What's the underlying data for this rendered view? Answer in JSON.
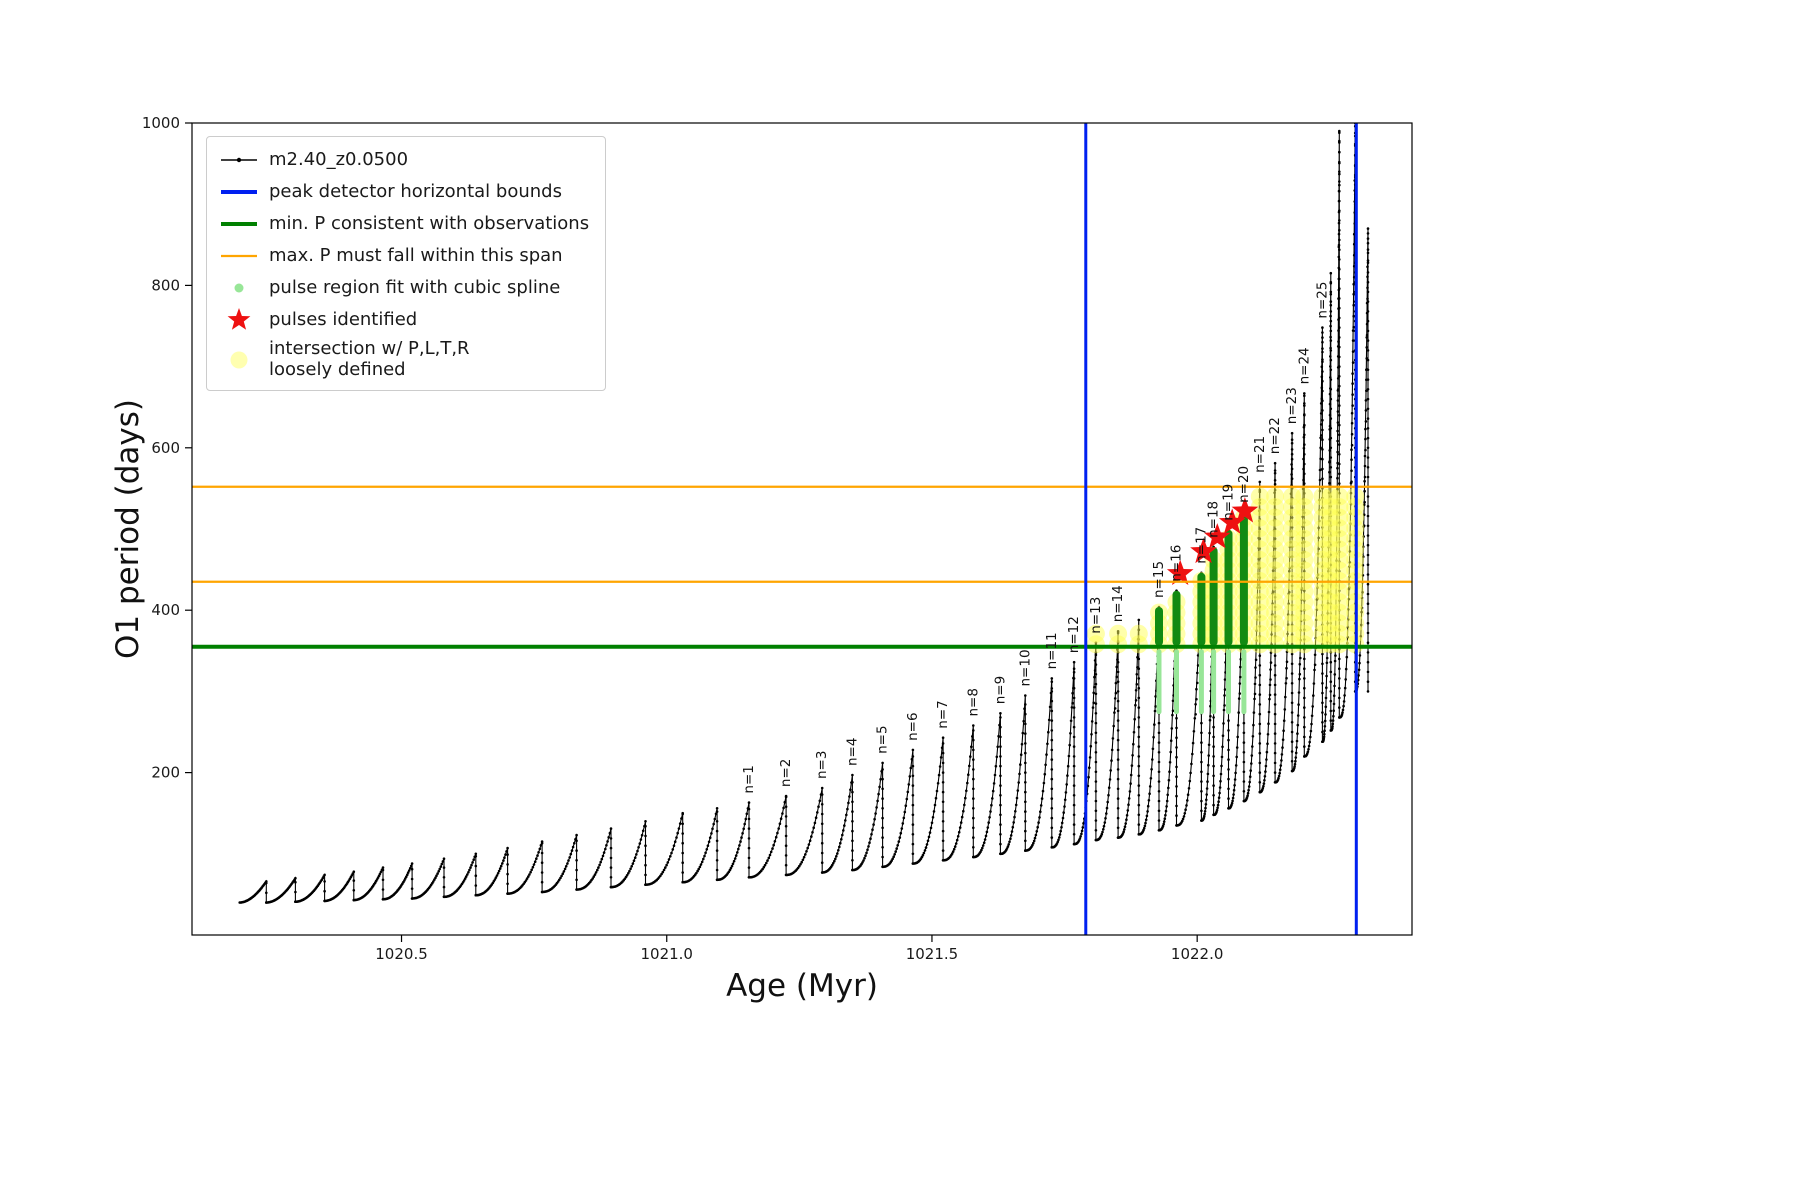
{
  "chart_data": {
    "type": "line",
    "title": "",
    "xlabel": "Age (Myr)",
    "ylabel": "O1 period (days)",
    "xlim": [
      1020.105,
      1022.405
    ],
    "ylim": [
      0,
      1000
    ],
    "xticks": [
      1020.5,
      1021.0,
      1021.5,
      1022.0
    ],
    "yticks": [
      200,
      400,
      600,
      800,
      1000
    ],
    "series_name": "m2.40_z0.0500",
    "peak_detector_bounds_x": [
      1021.79,
      1022.3
    ],
    "min_P_consistent_y": 355,
    "max_P_span_y": [
      435,
      552
    ],
    "pulses": [
      {
        "age": 1020.245,
        "peak": 66,
        "trough": 40
      },
      {
        "age": 1020.3,
        "peak": 70,
        "trough": 40
      },
      {
        "age": 1020.355,
        "peak": 74,
        "trough": 41
      },
      {
        "age": 1020.41,
        "peak": 78,
        "trough": 42
      },
      {
        "age": 1020.465,
        "peak": 83,
        "trough": 43
      },
      {
        "age": 1020.52,
        "peak": 88,
        "trough": 44
      },
      {
        "age": 1020.58,
        "peak": 94,
        "trough": 45
      },
      {
        "age": 1020.64,
        "peak": 100,
        "trough": 47
      },
      {
        "age": 1020.7,
        "peak": 107,
        "trough": 49
      },
      {
        "age": 1020.765,
        "peak": 115,
        "trough": 51
      },
      {
        "age": 1020.83,
        "peak": 123,
        "trough": 53
      },
      {
        "age": 1020.895,
        "peak": 131,
        "trough": 56
      },
      {
        "age": 1020.96,
        "peak": 140,
        "trough": 59
      },
      {
        "age": 1021.03,
        "peak": 150,
        "trough": 62
      },
      {
        "age": 1021.095,
        "peak": 156,
        "trough": 65
      },
      {
        "age": 1021.155,
        "peak": 163,
        "trough": 68,
        "label": "n=1"
      },
      {
        "age": 1021.225,
        "peak": 171,
        "trough": 71,
        "label": "n=2"
      },
      {
        "age": 1021.293,
        "peak": 181,
        "trough": 74,
        "label": "n=3"
      },
      {
        "age": 1021.35,
        "peak": 197,
        "trough": 77,
        "label": "n=4"
      },
      {
        "age": 1021.407,
        "peak": 212,
        "trough": 80,
        "label": "n=5"
      },
      {
        "age": 1021.464,
        "peak": 228,
        "trough": 84,
        "label": "n=6"
      },
      {
        "age": 1021.521,
        "peak": 243,
        "trough": 88,
        "label": "n=7"
      },
      {
        "age": 1021.578,
        "peak": 258,
        "trough": 92,
        "label": "n=8"
      },
      {
        "age": 1021.629,
        "peak": 273,
        "trough": 96,
        "label": "n=9"
      },
      {
        "age": 1021.676,
        "peak": 295,
        "trough": 100,
        "label": "n=10"
      },
      {
        "age": 1021.726,
        "peak": 316,
        "trough": 104,
        "label": "n=11"
      },
      {
        "age": 1021.768,
        "peak": 336,
        "trough": 108,
        "label": "n=12"
      },
      {
        "age": 1021.809,
        "peak": 360,
        "trough": 112,
        "label": "n=13"
      },
      {
        "age": 1021.851,
        "peak": 374,
        "trough": 117,
        "label": "n=14"
      },
      {
        "age": 1021.89,
        "peak": 388,
        "trough": 120
      },
      {
        "age": 1021.928,
        "peak": 404,
        "trough": 124,
        "label": "n=15"
      },
      {
        "age": 1021.961,
        "peak": 424,
        "trough": 129,
        "label": "n=16"
      },
      {
        "age": 1022.008,
        "peak": 446,
        "trough": 135,
        "label": "n=17"
      },
      {
        "age": 1022.031,
        "peak": 478,
        "trough": 141,
        "label": "n=18"
      },
      {
        "age": 1022.059,
        "peak": 499,
        "trough": 148,
        "label": "n=19"
      },
      {
        "age": 1022.088,
        "peak": 521,
        "trough": 156,
        "label": "n=20"
      },
      {
        "age": 1022.118,
        "peak": 558,
        "trough": 165,
        "label": "n=21"
      },
      {
        "age": 1022.147,
        "peak": 581,
        "trough": 176,
        "label": "n=22"
      },
      {
        "age": 1022.179,
        "peak": 618,
        "trough": 188,
        "label": "n=23"
      },
      {
        "age": 1022.202,
        "peak": 667,
        "trough": 202,
        "label": "n=24"
      },
      {
        "age": 1022.236,
        "peak": 748,
        "trough": 220,
        "label": "n=25"
      },
      {
        "age": 1022.252,
        "peak": 815,
        "trough": 238
      },
      {
        "age": 1022.268,
        "peak": 990,
        "trough": 252
      },
      {
        "age": 1022.298,
        "peak": 1000,
        "trough": 268
      },
      {
        "age": 1022.322,
        "peak": 870,
        "trough": 300
      }
    ],
    "stars": [
      {
        "age": 1021.968,
        "period": 445
      },
      {
        "age": 1022.012,
        "period": 472
      },
      {
        "age": 1022.038,
        "period": 490
      },
      {
        "age": 1022.066,
        "period": 508
      },
      {
        "age": 1022.09,
        "period": 522
      }
    ],
    "spline_pulse_labels": [
      "n=15",
      "n=16",
      "n=17",
      "n=18",
      "n=19",
      "n=20"
    ],
    "spline_bars": {
      "bottom": 356,
      "lower_bottom": 272,
      "lower_top": 352
    },
    "intersection_region": {
      "x_start": 1021.8,
      "x_end": 1022.31,
      "y_bottom": 358,
      "y_cap": 552
    },
    "legend": [
      {
        "label": "m2.40_z0.0500",
        "marker": "line-dot",
        "color": "#000000"
      },
      {
        "label": "peak detector horizontal bounds",
        "marker": "line",
        "color": "#0020f0"
      },
      {
        "label": "min. P consistent with observations",
        "marker": "line",
        "color": "#008000"
      },
      {
        "label": "max. P must fall within this span",
        "marker": "thinline",
        "color": "#ffa500"
      },
      {
        "label": "pulse region fit with cubic spline",
        "marker": "dot",
        "color": "#98e698"
      },
      {
        "label": "pulses identified",
        "marker": "star",
        "color": "#ee1111"
      },
      {
        "label": "intersection w/ P,L,T,R",
        "label2": "loosely defined",
        "marker": "bigdot",
        "color": "#ffffb0"
      }
    ],
    "colors": {
      "curve": "#000000",
      "peak_detector": "#0020f0",
      "min_P": "#008000",
      "max_P": "#ffa500",
      "spline_light": "#98e698",
      "spline_dark": "#128a12",
      "star": "#ee1111",
      "intersection": "#ffff55",
      "axis": "#000000",
      "tick_text": "#1a1a1a"
    }
  }
}
